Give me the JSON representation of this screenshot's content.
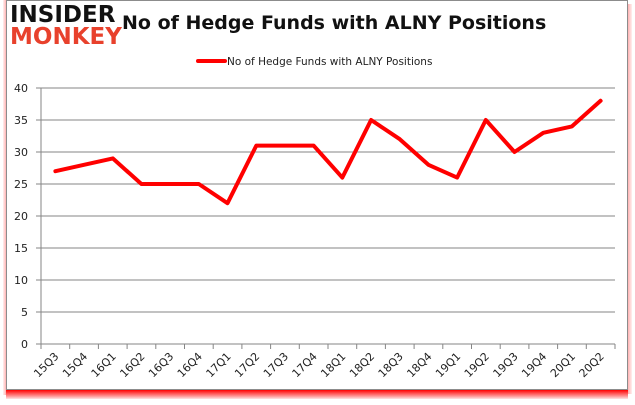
{
  "logo": {
    "line1": "INSIDER",
    "line2": "MONKEY"
  },
  "header": {
    "title": "No of Hedge Funds with ALNY Positions"
  },
  "colors": {
    "series": "#ff0000",
    "grid": "#868686",
    "logo_red": "#e8412c"
  },
  "chart_data": {
    "type": "line",
    "title": "No of Hedge Funds with ALNY Positions",
    "xlabel": "",
    "ylabel": "",
    "ylim": [
      0,
      40
    ],
    "yticks": [
      0,
      5,
      10,
      15,
      20,
      25,
      30,
      35,
      40
    ],
    "grid": true,
    "legend_position": "top",
    "categories": [
      "15Q3",
      "15Q4",
      "16Q1",
      "16Q2",
      "16Q3",
      "16Q4",
      "17Q1",
      "17Q2",
      "17Q3",
      "17Q4",
      "18Q1",
      "18Q2",
      "18Q3",
      "18Q4",
      "19Q1",
      "19Q2",
      "19Q3",
      "19Q4",
      "20Q1",
      "20Q2"
    ],
    "series": [
      {
        "name": "No of Hedge Funds with ALNY Positions",
        "values": [
          27,
          28,
          29,
          25,
          25,
          25,
          22,
          31,
          31,
          31,
          26,
          35,
          32,
          28,
          26,
          35,
          30,
          33,
          34,
          38
        ]
      }
    ]
  }
}
